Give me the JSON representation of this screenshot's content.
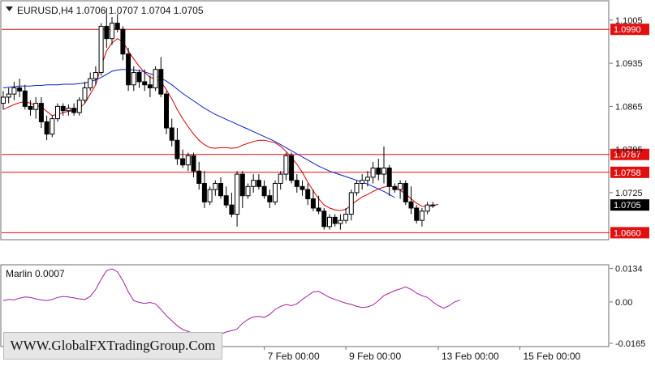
{
  "chart_data": [
    {
      "type": "candlestick",
      "symbol_header": "EURUSD,H4  1.0706 1.0707 1.0704 1.0705",
      "ylim": [
        1.065,
        1.1035
      ],
      "y_ticks": [
        "1.1005",
        "1.0935",
        "1.0865",
        "1.0795",
        "1.0725"
      ],
      "horizontal_levels": [
        {
          "label": "1.0990",
          "value": 1.099
        },
        {
          "label": "1.0787",
          "value": 1.0787
        },
        {
          "label": "1.0758",
          "value": 1.0758
        },
        {
          "label": "1.0660",
          "value": 1.066
        }
      ],
      "current_price": {
        "label": "1.0705",
        "value": 1.0705
      },
      "x_ticks": [
        {
          "label": "7 Feb 00:00",
          "index": 48
        },
        {
          "label": "9 Feb 00:00",
          "index": 63
        },
        {
          "label": "13 Feb 00:00",
          "index": 80
        },
        {
          "label": "15 Feb 00:00",
          "index": 95
        }
      ],
      "candles": [
        [
          1.087,
          1.089,
          1.086,
          1.088
        ],
        [
          1.088,
          1.0895,
          1.087,
          1.0885
        ],
        [
          1.0885,
          1.0905,
          1.0875,
          1.0895
        ],
        [
          1.0895,
          1.091,
          1.088,
          1.089
        ],
        [
          1.089,
          1.09,
          1.086,
          1.0865
        ],
        [
          1.0865,
          1.0875,
          1.085,
          1.086
        ],
        [
          1.086,
          1.088,
          1.0845,
          1.087
        ],
        [
          1.087,
          1.088,
          1.083,
          1.084
        ],
        [
          1.084,
          1.085,
          1.081,
          1.082
        ],
        [
          1.082,
          1.085,
          1.0815,
          1.0845
        ],
        [
          1.0845,
          1.087,
          1.084,
          1.0865
        ],
        [
          1.0865,
          1.087,
          1.085,
          1.0858
        ],
        [
          1.0858,
          1.0868,
          1.085,
          1.0862
        ],
        [
          1.0862,
          1.087,
          1.085,
          1.0855
        ],
        [
          1.0855,
          1.088,
          1.085,
          1.0875
        ],
        [
          1.0875,
          1.0905,
          1.087,
          1.0895
        ],
        [
          1.0895,
          1.092,
          1.089,
          1.091
        ],
        [
          1.091,
          1.093,
          1.09,
          1.092
        ],
        [
          1.092,
          1.1,
          1.0915,
          1.0995
        ],
        [
          1.0995,
          1.1025,
          1.096,
          1.0975
        ],
        [
          1.0975,
          1.101,
          1.0965,
          1.1
        ],
        [
          1.1,
          1.1015,
          1.0985,
          1.099
        ],
        [
          1.099,
          1.0995,
          1.094,
          1.095
        ],
        [
          1.095,
          1.096,
          1.089,
          1.09
        ],
        [
          1.09,
          1.093,
          1.089,
          1.092
        ],
        [
          1.092,
          1.0925,
          1.0895,
          1.0905
        ],
        [
          1.0905,
          1.0925,
          1.089,
          1.09
        ],
        [
          1.09,
          1.0915,
          1.088,
          1.0895
        ],
        [
          1.0895,
          1.093,
          1.089,
          1.0925
        ],
        [
          1.0925,
          1.0945,
          1.088,
          1.0885
        ],
        [
          1.0885,
          1.089,
          1.082,
          1.083
        ],
        [
          1.083,
          1.0845,
          1.08,
          1.081
        ],
        [
          1.081,
          1.083,
          1.077,
          1.078
        ],
        [
          1.078,
          1.0795,
          1.0765,
          1.077
        ],
        [
          1.077,
          1.079,
          1.076,
          1.0785
        ],
        [
          1.0785,
          1.079,
          1.075,
          1.076
        ],
        [
          1.076,
          1.0775,
          1.073,
          1.074
        ],
        [
          1.074,
          1.076,
          1.07,
          1.071
        ],
        [
          1.071,
          1.0735,
          1.0705,
          1.073
        ],
        [
          1.073,
          1.0745,
          1.072,
          1.074
        ],
        [
          1.074,
          1.075,
          1.0715,
          1.072
        ],
        [
          1.072,
          1.0735,
          1.07,
          1.0705
        ],
        [
          1.0705,
          1.0725,
          1.0685,
          1.069
        ],
        [
          1.069,
          1.076,
          1.067,
          1.0755
        ],
        [
          1.0755,
          1.076,
          1.07,
          1.072
        ],
        [
          1.072,
          1.074,
          1.0715,
          1.0735
        ],
        [
          1.0735,
          1.0755,
          1.0725,
          1.0745
        ],
        [
          1.0745,
          1.0755,
          1.073,
          1.0735
        ],
        [
          1.0735,
          1.0745,
          1.0715,
          1.072
        ],
        [
          1.072,
          1.073,
          1.07,
          1.071
        ],
        [
          1.071,
          1.0745,
          1.0705,
          1.074
        ],
        [
          1.074,
          1.076,
          1.073,
          1.0755
        ],
        [
          1.0755,
          1.079,
          1.0745,
          1.0785
        ],
        [
          1.0785,
          1.079,
          1.074,
          1.0745
        ],
        [
          1.0745,
          1.0755,
          1.0725,
          1.0735
        ],
        [
          1.0735,
          1.0745,
          1.072,
          1.073
        ],
        [
          1.073,
          1.074,
          1.0705,
          1.0715
        ],
        [
          1.0715,
          1.073,
          1.0695,
          1.07
        ],
        [
          1.07,
          1.072,
          1.069,
          1.0695
        ],
        [
          1.0695,
          1.07,
          1.0665,
          1.067
        ],
        [
          1.067,
          1.069,
          1.0665,
          1.0685
        ],
        [
          1.0685,
          1.069,
          1.067,
          1.0675
        ],
        [
          1.0675,
          1.069,
          1.0665,
          1.068
        ],
        [
          1.068,
          1.07,
          1.0675,
          1.069
        ],
        [
          1.069,
          1.073,
          1.068,
          1.0725
        ],
        [
          1.0725,
          1.0745,
          1.072,
          1.074
        ],
        [
          1.074,
          1.0755,
          1.073,
          1.0745
        ],
        [
          1.0745,
          1.076,
          1.0735,
          1.075
        ],
        [
          1.075,
          1.0775,
          1.074,
          1.0765
        ],
        [
          1.0765,
          1.078,
          1.0745,
          1.0755
        ],
        [
          1.0755,
          1.08,
          1.074,
          1.0765
        ],
        [
          1.0765,
          1.077,
          1.072,
          1.0735
        ],
        [
          1.0735,
          1.074,
          1.0725,
          1.073
        ],
        [
          1.073,
          1.0745,
          1.0715,
          1.074
        ],
        [
          1.074,
          1.0745,
          1.0705,
          1.071
        ],
        [
          1.071,
          1.0735,
          1.069,
          1.07
        ],
        [
          1.07,
          1.0705,
          1.0675,
          1.068
        ],
        [
          1.068,
          1.07,
          1.067,
          1.0695
        ],
        [
          1.0695,
          1.071,
          1.069,
          1.0705
        ],
        [
          1.0705,
          1.071,
          1.07,
          1.0705
        ]
      ],
      "indicator_lines": [
        {
          "color": "#d10000",
          "values": [
            1.086,
            1.0864,
            1.0868,
            1.0871,
            1.0873,
            1.087,
            1.0867,
            1.0864,
            1.0857,
            1.085,
            1.0852,
            1.0855,
            1.0857,
            1.0858,
            1.0862,
            1.087,
            1.0885,
            1.09,
            1.093,
            1.0955,
            1.0968,
            1.0975,
            1.097,
            1.0955,
            1.0942,
            1.093,
            1.092,
            1.0912,
            1.091,
            1.0905,
            1.0892,
            1.0877,
            1.086,
            1.0845,
            1.0832,
            1.082,
            1.081,
            1.0803,
            1.0798,
            1.0797,
            1.0798,
            1.0798,
            1.0797,
            1.0798,
            1.0802,
            1.0805,
            1.0808,
            1.081,
            1.081,
            1.0808,
            1.0806,
            1.08,
            1.0792,
            1.0782,
            1.0771,
            1.0758,
            1.0742,
            1.0728,
            1.0715,
            1.0705,
            1.07,
            1.0697,
            1.0696,
            1.0698,
            1.0705,
            1.0712,
            1.0718,
            1.0722,
            1.0727,
            1.0731,
            1.0734,
            1.0736,
            1.0733,
            1.0729,
            1.0723,
            1.0715,
            1.0708,
            1.0703,
            1.0702,
            1.0704,
            1.0706
          ]
        },
        {
          "color": "#0a1ec8",
          "values": [
            1.0895,
            1.0896,
            1.0897,
            1.0898,
            1.0898,
            1.0898,
            1.0899,
            1.0899,
            1.09,
            1.09,
            1.09,
            1.0901,
            1.0901,
            1.0901,
            1.0902,
            1.0903,
            1.0905,
            1.0908,
            1.0912,
            1.0917,
            1.0922,
            1.0924,
            1.0925,
            1.0925,
            1.0924,
            1.0923,
            1.0921,
            1.0918,
            1.0915,
            1.0911,
            1.0906,
            1.09,
            1.0893,
            1.0886,
            1.088,
            1.0874,
            1.0868,
            1.0862,
            1.0857,
            1.0852,
            1.0848,
            1.0844,
            1.084,
            1.0836,
            1.0832,
            1.0828,
            1.0824,
            1.082,
            1.0816,
            1.0812,
            1.0808,
            1.0803,
            1.0798,
            1.0793,
            1.0788,
            1.0783,
            1.0778,
            1.0773,
            1.0768,
            1.0764,
            1.076,
            1.0757,
            1.0754,
            1.0751,
            1.0748,
            1.0745,
            1.0742,
            1.0739,
            1.0735,
            1.0731,
            1.0727,
            1.0722,
            1.0717
          ]
        }
      ]
    },
    {
      "type": "line",
      "label": "Marlin 0.0007",
      "ylim": [
        -0.0175,
        0.0145
      ],
      "y_ticks": [
        "0.0134",
        "0.00",
        "-0.0165"
      ],
      "series": [
        {
          "color": "#a020a0",
          "values": [
            0.0005,
            0.001,
            0.0008,
            0.0015,
            0.002,
            0.0018,
            0.0012,
            0.0008,
            0.0005,
            0.001,
            0.0018,
            0.0022,
            0.002,
            0.0016,
            0.0012,
            0.001,
            0.0022,
            0.005,
            0.009,
            0.0125,
            0.0132,
            0.012,
            0.0085,
            0.004,
            0.0005,
            -0.0002,
            -0.0006,
            -0.0002,
            -0.0008,
            -0.003,
            -0.0055,
            -0.0075,
            -0.0095,
            -0.011,
            -0.0118,
            -0.0126,
            -0.0135,
            -0.0148,
            -0.0152,
            -0.014,
            -0.0128,
            -0.012,
            -0.0115,
            -0.0108,
            -0.0085,
            -0.007,
            -0.006,
            -0.0058,
            -0.0062,
            -0.005,
            -0.003,
            -0.0018,
            -0.001,
            -0.0015,
            -0.0008,
            0.001,
            0.0025,
            0.004,
            0.0042,
            0.003,
            0.0018,
            0.001,
            0.0002,
            -0.0005,
            -0.001,
            -0.0018,
            -0.0022,
            -0.002,
            -0.0012,
            0.0005,
            0.0025,
            0.0035,
            0.0045,
            0.0052,
            0.006,
            0.005,
            0.0035,
            0.0025,
            0.0018,
            0.0,
            -0.0015,
            -0.0025,
            -0.0015,
            0.0,
            0.0007
          ]
        }
      ]
    }
  ],
  "colors": {
    "level_line": "#e01010",
    "level_label_bg": "#e01010",
    "price_label_bg": "#000000",
    "plot_bg": "#ffffff",
    "axis_line": "#6e6e6e",
    "grid": "#d8d8d8"
  },
  "icons": {
    "menu": "triangle-down-icon"
  },
  "watermark": "WWW.GlobalFXTradingGroup.Com"
}
